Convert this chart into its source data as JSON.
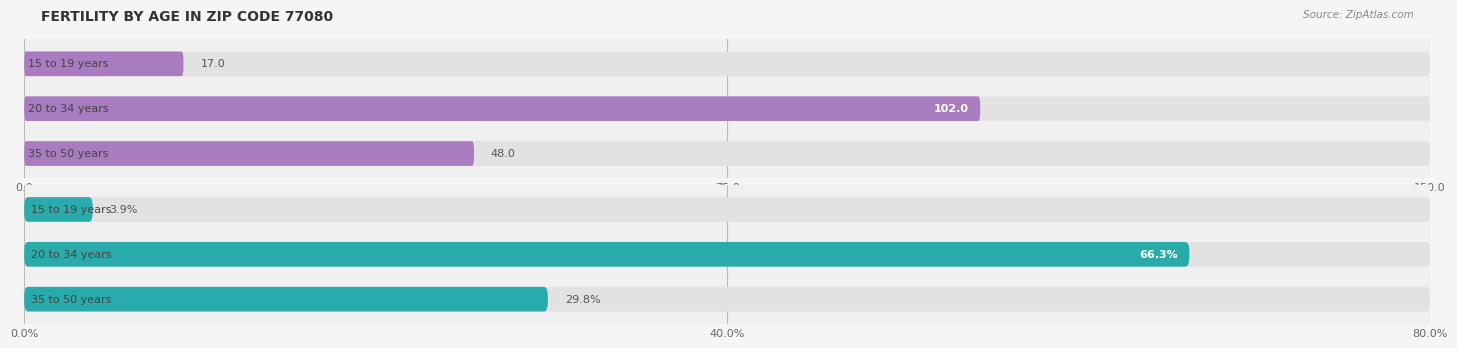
{
  "title": "FERTILITY BY AGE IN ZIP CODE 77080",
  "source": "Source: ZipAtlas.com",
  "top_chart": {
    "categories": [
      "15 to 19 years",
      "20 to 34 years",
      "35 to 50 years"
    ],
    "values": [
      17.0,
      102.0,
      48.0
    ],
    "xlim": [
      0,
      150.0
    ],
    "xticks": [
      0.0,
      75.0,
      150.0
    ],
    "bar_color_dark": "#a97bbf",
    "bar_color_light": "#c9a8d4",
    "label_inside_color": "#ffffff",
    "label_outside_color": "#555555",
    "inside_threshold": 100
  },
  "bottom_chart": {
    "categories": [
      "15 to 19 years",
      "20 to 34 years",
      "35 to 50 years"
    ],
    "values": [
      3.9,
      66.3,
      29.8
    ],
    "xlim": [
      0,
      80.0
    ],
    "xticks": [
      0.0,
      40.0,
      80.0
    ],
    "bar_color_dark": "#2aabab",
    "bar_color_light": "#7fcfcf",
    "label_inside_color": "#ffffff",
    "label_outside_color": "#555555",
    "inside_threshold": 60
  },
  "bg_color": "#f0f0f0",
  "bar_bg_color": "#e2e2e2",
  "category_label_color": "#444444",
  "category_label_fontsize": 8,
  "value_label_fontsize": 8,
  "tick_fontsize": 8,
  "title_fontsize": 10,
  "source_fontsize": 7.5,
  "bar_height": 0.55
}
